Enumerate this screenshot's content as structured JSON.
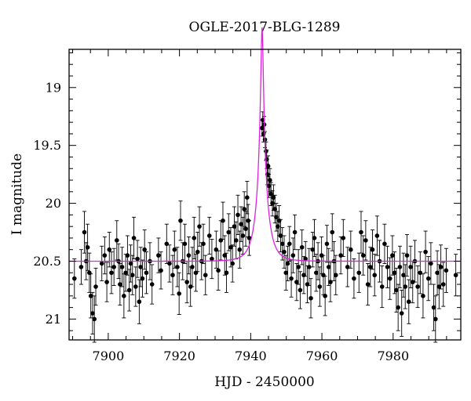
{
  "chart_data": {
    "type": "scatter",
    "title": "OGLE-2017-BLG-1289",
    "xlabel": "HJD - 2450000",
    "ylabel": "I magnitude",
    "xlim": [
      7889,
      7999
    ],
    "ylim": [
      21.18,
      18.67
    ],
    "y_inverted": true,
    "grid": false,
    "legend": "none",
    "x_ticks": [
      7900,
      7920,
      7940,
      7960,
      7980
    ],
    "y_ticks": [
      19,
      19.5,
      20,
      20.5,
      21
    ],
    "x_tick_labels": [
      "7900",
      "7920",
      "7940",
      "7960",
      "7980"
    ],
    "y_tick_labels": [
      "19",
      "19.5",
      "20",
      "20.5",
      "21"
    ],
    "model": {
      "color": "#e020e0",
      "t0": 7943.2,
      "tE": 3.0,
      "u0": 0.1,
      "baseline_mag": 20.5,
      "blend_fraction": 0.6
    },
    "series": [
      {
        "color": "#000000",
        "points": [
          [
            7890.5,
            20.65,
            0.17
          ],
          [
            7892.4,
            20.55,
            0.15
          ],
          [
            7893.3,
            20.25,
            0.18
          ],
          [
            7893.8,
            20.5,
            0.16
          ],
          [
            7894.2,
            20.38,
            0.2
          ],
          [
            7894.7,
            20.6,
            0.17
          ],
          [
            7895.1,
            20.8,
            0.19
          ],
          [
            7895.6,
            20.95,
            0.18
          ],
          [
            7896.1,
            21.0,
            0.2
          ],
          [
            7896.5,
            20.72,
            0.16
          ],
          [
            7898.2,
            20.52,
            0.15
          ],
          [
            7899.0,
            20.45,
            0.16
          ],
          [
            7899.6,
            20.68,
            0.17
          ],
          [
            7900.3,
            20.4,
            0.15
          ],
          [
            7900.9,
            20.6,
            0.18
          ],
          [
            7901.6,
            20.55,
            0.16
          ],
          [
            7902.4,
            20.32,
            0.17
          ],
          [
            7902.9,
            20.5,
            0.15
          ],
          [
            7903.3,
            20.7,
            0.18
          ],
          [
            7903.9,
            20.55,
            0.17
          ],
          [
            7904.4,
            20.8,
            0.19
          ],
          [
            7904.9,
            20.6,
            0.16
          ],
          [
            7905.4,
            20.45,
            0.17
          ],
          [
            7905.9,
            20.75,
            0.18
          ],
          [
            7906.3,
            20.52,
            0.16
          ],
          [
            7906.8,
            20.62,
            0.17
          ],
          [
            7907.2,
            20.3,
            0.18
          ],
          [
            7907.7,
            20.72,
            0.17
          ],
          [
            7908.2,
            20.48,
            0.16
          ],
          [
            7908.7,
            20.85,
            0.19
          ],
          [
            7909.1,
            20.55,
            0.17
          ],
          [
            7909.6,
            20.65,
            0.16
          ],
          [
            7910.2,
            20.4,
            0.17
          ],
          [
            7910.7,
            20.6,
            0.18
          ],
          [
            7911.7,
            20.5,
            0.16
          ],
          [
            7912.3,
            20.7,
            0.17
          ],
          [
            7914.1,
            20.45,
            0.15
          ],
          [
            7914.8,
            20.58,
            0.16
          ],
          [
            7916.4,
            20.35,
            0.17
          ],
          [
            7917.2,
            20.52,
            0.16
          ],
          [
            7918.1,
            20.62,
            0.17
          ],
          [
            7918.6,
            20.4,
            0.16
          ],
          [
            7919.4,
            20.55,
            0.17
          ],
          [
            7919.9,
            20.78,
            0.18
          ],
          [
            7920.3,
            20.15,
            0.17
          ],
          [
            7920.9,
            20.5,
            0.16
          ],
          [
            7921.5,
            20.35,
            0.17
          ],
          [
            7922.1,
            20.68,
            0.18
          ],
          [
            7922.6,
            20.45,
            0.16
          ],
          [
            7923.1,
            20.72,
            0.17
          ],
          [
            7923.6,
            20.55,
            0.17
          ],
          [
            7924.1,
            20.3,
            0.18
          ],
          [
            7924.6,
            20.6,
            0.16
          ],
          [
            7925.1,
            20.42,
            0.17
          ],
          [
            7925.6,
            20.2,
            0.17
          ],
          [
            7926.2,
            20.5,
            0.16
          ],
          [
            7926.7,
            20.35,
            0.17
          ],
          [
            7927.3,
            20.62,
            0.17
          ],
          [
            7928.4,
            20.28,
            0.16
          ],
          [
            7929.1,
            20.48,
            0.17
          ],
          [
            7930.3,
            20.4,
            0.16
          ],
          [
            7930.9,
            20.58,
            0.17
          ],
          [
            7931.6,
            20.32,
            0.17
          ],
          [
            7932.2,
            20.15,
            0.16
          ],
          [
            7932.7,
            20.45,
            0.17
          ],
          [
            7933.2,
            20.6,
            0.17
          ],
          [
            7933.8,
            20.25,
            0.16
          ],
          [
            7934.4,
            20.38,
            0.17
          ],
          [
            7934.9,
            20.52,
            0.16
          ],
          [
            7935.4,
            20.2,
            0.17
          ],
          [
            7935.9,
            20.32,
            0.16
          ],
          [
            7936.4,
            20.1,
            0.17
          ],
          [
            7936.9,
            20.4,
            0.16
          ],
          [
            7937.3,
            20.18,
            0.15
          ],
          [
            7937.8,
            20.28,
            0.16
          ],
          [
            7938.2,
            20.05,
            0.15
          ],
          [
            7938.6,
            20.22,
            0.15
          ],
          [
            7939.0,
            19.95,
            0.14
          ],
          [
            7939.3,
            20.15,
            0.14
          ],
          [
            7939.6,
            20.3,
            0.15
          ],
          [
            7943.2,
            19.35,
            0.07
          ],
          [
            7943.4,
            19.28,
            0.07
          ],
          [
            7943.6,
            19.4,
            0.07
          ],
          [
            7943.8,
            19.32,
            0.07
          ],
          [
            7944.0,
            19.45,
            0.07
          ],
          [
            7944.3,
            19.55,
            0.08
          ],
          [
            7944.5,
            19.62,
            0.08
          ],
          [
            7944.7,
            19.75,
            0.09
          ],
          [
            7944.9,
            19.68,
            0.09
          ],
          [
            7945.1,
            19.85,
            0.1
          ],
          [
            7945.4,
            19.8,
            0.1
          ],
          [
            7945.7,
            19.92,
            0.1
          ],
          [
            7946.1,
            20.0,
            0.11
          ],
          [
            7946.4,
            19.95,
            0.11
          ],
          [
            7946.8,
            20.05,
            0.12
          ],
          [
            7947.2,
            20.12,
            0.12
          ],
          [
            7947.6,
            20.2,
            0.13
          ],
          [
            7948.0,
            20.15,
            0.13
          ],
          [
            7948.4,
            20.28,
            0.14
          ],
          [
            7948.9,
            20.35,
            0.14
          ],
          [
            7949.4,
            20.42,
            0.14
          ],
          [
            7949.9,
            20.6,
            0.15
          ],
          [
            7950.4,
            20.52,
            0.15
          ],
          [
            7950.9,
            20.35,
            0.15
          ],
          [
            7951.4,
            20.65,
            0.16
          ],
          [
            7951.9,
            20.45,
            0.15
          ],
          [
            7952.4,
            20.25,
            0.15
          ],
          [
            7952.9,
            20.68,
            0.16
          ],
          [
            7953.4,
            20.55,
            0.15
          ],
          [
            7953.9,
            20.75,
            0.16
          ],
          [
            7954.4,
            20.38,
            0.15
          ],
          [
            7954.9,
            20.62,
            0.16
          ],
          [
            7955.4,
            20.48,
            0.15
          ],
          [
            7955.9,
            20.7,
            0.16
          ],
          [
            7956.4,
            20.55,
            0.16
          ],
          [
            7956.9,
            20.82,
            0.17
          ],
          [
            7957.4,
            20.4,
            0.15
          ],
          [
            7957.9,
            20.3,
            0.16
          ],
          [
            7958.4,
            20.6,
            0.16
          ],
          [
            7958.9,
            20.5,
            0.16
          ],
          [
            7959.4,
            20.72,
            0.17
          ],
          [
            7959.9,
            20.45,
            0.16
          ],
          [
            7960.4,
            20.62,
            0.17
          ],
          [
            7960.9,
            20.8,
            0.17
          ],
          [
            7961.4,
            20.35,
            0.16
          ],
          [
            7961.9,
            20.55,
            0.16
          ],
          [
            7962.4,
            20.68,
            0.17
          ],
          [
            7962.9,
            20.25,
            0.16
          ],
          [
            7963.4,
            20.5,
            0.17
          ],
          [
            7963.9,
            20.62,
            0.17
          ],
          [
            7965.3,
            20.45,
            0.16
          ],
          [
            7966.0,
            20.3,
            0.16
          ],
          [
            7967.2,
            20.55,
            0.17
          ],
          [
            7968.1,
            20.4,
            0.16
          ],
          [
            7969.0,
            20.65,
            0.17
          ],
          [
            7970.4,
            20.6,
            0.17
          ],
          [
            7971.0,
            20.25,
            0.18
          ],
          [
            7971.6,
            20.45,
            0.17
          ],
          [
            7972.3,
            20.32,
            0.17
          ],
          [
            7972.9,
            20.7,
            0.18
          ],
          [
            7973.6,
            20.55,
            0.17
          ],
          [
            7974.2,
            20.4,
            0.17
          ],
          [
            7974.8,
            20.62,
            0.18
          ],
          [
            7975.5,
            20.28,
            0.17
          ],
          [
            7976.2,
            20.5,
            0.18
          ],
          [
            7976.9,
            20.72,
            0.18
          ],
          [
            7977.6,
            20.35,
            0.17
          ],
          [
            7978.4,
            20.55,
            0.18
          ],
          [
            7979.1,
            20.65,
            0.18
          ],
          [
            7979.8,
            20.45,
            0.17
          ],
          [
            7980.4,
            20.6,
            0.18
          ],
          [
            7980.9,
            20.75,
            0.19
          ],
          [
            7981.4,
            20.9,
            0.2
          ],
          [
            7981.9,
            20.55,
            0.18
          ],
          [
            7982.4,
            20.95,
            0.2
          ],
          [
            7982.9,
            20.62,
            0.19
          ],
          [
            7983.4,
            20.72,
            0.19
          ],
          [
            7983.9,
            20.45,
            0.18
          ],
          [
            7984.4,
            20.85,
            0.19
          ],
          [
            7984.9,
            20.55,
            0.18
          ],
          [
            7985.5,
            20.68,
            0.18
          ],
          [
            7986.1,
            20.5,
            0.18
          ],
          [
            7986.9,
            20.72,
            0.18
          ],
          [
            7987.6,
            20.6,
            0.18
          ],
          [
            7988.4,
            20.8,
            0.19
          ],
          [
            7989.1,
            20.42,
            0.18
          ],
          [
            7989.9,
            20.65,
            0.19
          ],
          [
            7990.6,
            20.52,
            0.18
          ],
          [
            7991.4,
            20.9,
            0.2
          ],
          [
            7991.9,
            21.0,
            0.2
          ],
          [
            7992.4,
            20.6,
            0.19
          ],
          [
            7992.9,
            20.72,
            0.19
          ],
          [
            7993.4,
            20.55,
            0.19
          ],
          [
            7994.1,
            20.7,
            0.19
          ],
          [
            7994.9,
            20.58,
            0.19
          ],
          [
            7997.6,
            20.62,
            0.18
          ]
        ]
      }
    ]
  }
}
